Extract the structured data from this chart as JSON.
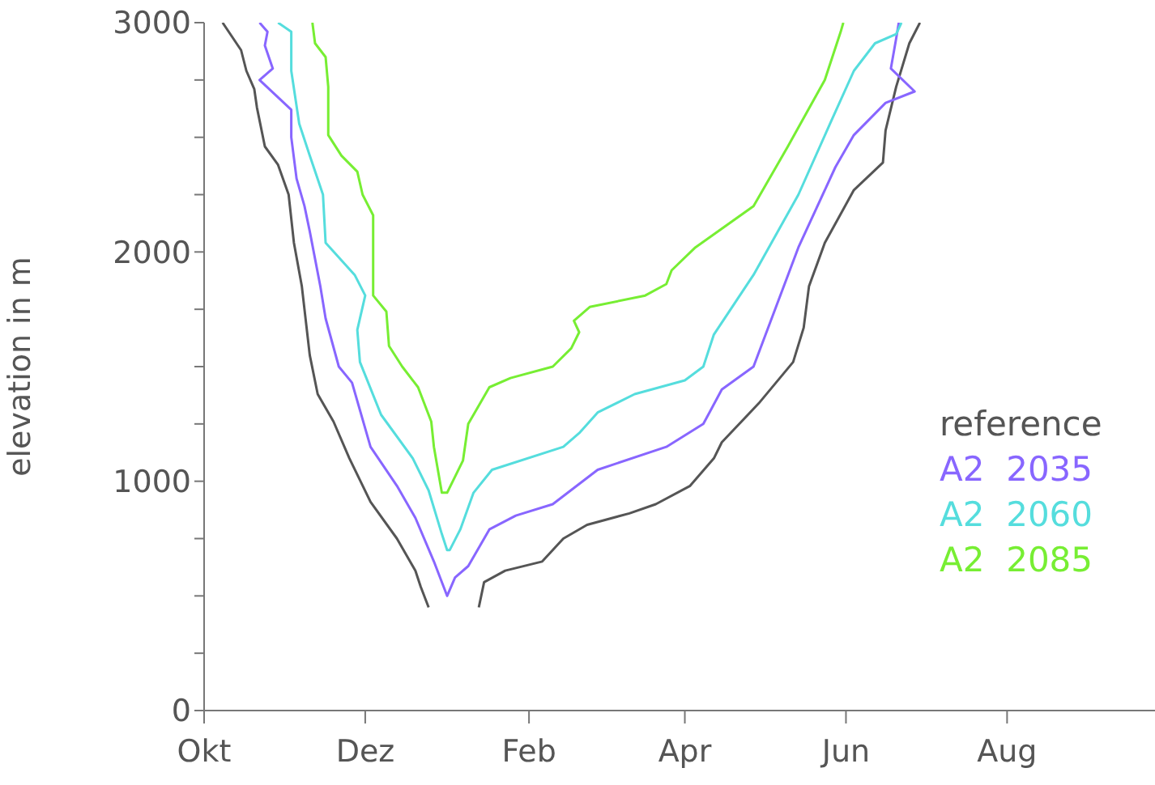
{
  "chart_data": {
    "type": "line",
    "ylabel": "elevation in m",
    "xlim": [
      "2000-10-01",
      "2001-09-26"
    ],
    "ylim": [
      0,
      3000
    ],
    "xticks": [
      {
        "value": "2000-10-01",
        "label": "Okt"
      },
      {
        "value": "2000-12-01",
        "label": "Dez"
      },
      {
        "value": "2001-02-01",
        "label": "Feb"
      },
      {
        "value": "2001-04-01",
        "label": "Apr"
      },
      {
        "value": "2001-06-01",
        "label": "Jun"
      },
      {
        "value": "2001-08-01",
        "label": "Aug"
      }
    ],
    "yticks": [
      0,
      {
        "value": 250,
        "label": null
      },
      {
        "value": 500,
        "label": null
      },
      {
        "value": 750,
        "label": null
      },
      1000,
      {
        "value": 1250,
        "label": null
      },
      {
        "value": 1500,
        "label": null
      },
      {
        "value": 1750,
        "label": null
      },
      2000,
      {
        "value": 2250,
        "label": null
      },
      {
        "value": 2500,
        "label": null
      },
      {
        "value": 2750,
        "label": null
      },
      3000
    ],
    "legend": "right",
    "marker": "none",
    "line_style": "solid",
    "series": [
      {
        "name": "reference",
        "color": "#555555",
        "x": [
          "2000-10-08",
          "2000-10-15",
          "2000-10-17",
          "2000-10-20",
          "2000-10-21",
          "2000-10-24",
          "2000-10-29",
          "2000-11-02",
          "2000-11-04",
          "2000-11-07",
          "2000-11-10",
          "2000-11-13",
          "2000-11-19",
          "2000-11-25",
          "2000-12-03",
          "2000-12-13",
          "2000-12-20",
          "2000-12-22",
          "2000-12-25",
          "2001-01-04",
          "2001-01-13",
          "2001-01-15",
          "2001-01-23",
          "2001-02-06",
          "2001-02-14",
          "2001-02-23",
          "2001-03-11",
          "2001-03-21",
          "2001-04-03",
          "2001-04-12",
          "2001-04-15",
          "2001-04-29",
          "2001-05-12",
          "2001-05-16",
          "2001-05-18",
          "2001-05-24",
          "2001-06-04",
          "2001-06-15",
          "2001-06-16",
          "2001-06-20",
          "2001-06-25",
          "2001-06-29"
        ],
        "values": [
          3000,
          2880,
          2790,
          2710,
          2630,
          2460,
          2380,
          2250,
          2040,
          1850,
          1550,
          1380,
          1260,
          1100,
          910,
          750,
          610,
          540,
          450,
          null,
          450,
          560,
          610,
          650,
          750,
          810,
          860,
          900,
          980,
          1100,
          1170,
          1340,
          1520,
          1670,
          1850,
          2040,
          2270,
          2390,
          2530,
          2720,
          2910,
          3000
        ]
      },
      {
        "name": "A2  2035",
        "color": "#8866ff",
        "x": [
          "2000-10-22",
          "2000-10-25",
          "2000-10-24",
          "2000-10-27",
          "2000-10-22",
          "2000-11-03",
          "2000-11-03",
          "2000-11-05",
          "2000-11-08",
          "2000-11-10",
          "2000-11-14",
          "2000-11-16",
          "2000-11-21",
          "2000-11-26",
          "2000-12-03",
          "2000-12-13",
          "2000-12-20",
          "2000-12-27",
          "2001-01-01",
          "2001-01-04",
          "2001-01-09",
          "2001-01-17",
          "2001-01-27",
          "2001-02-10",
          "2001-02-27",
          "2001-03-25",
          "2001-04-08",
          "2001-04-15",
          "2001-04-27",
          "2001-05-14",
          "2001-05-28",
          "2001-06-04",
          "2001-06-16",
          "2001-06-27",
          "2001-06-18",
          "2001-06-20",
          "2001-06-21"
        ],
        "values": [
          3000,
          2960,
          2900,
          2800,
          2750,
          2620,
          2500,
          2320,
          2200,
          2090,
          1850,
          1710,
          1500,
          1430,
          1150,
          980,
          840,
          650,
          500,
          580,
          630,
          790,
          850,
          900,
          1050,
          1150,
          1250,
          1400,
          1500,
          2020,
          2370,
          2510,
          2650,
          2700,
          2800,
          2930,
          3000
        ]
      },
      {
        "name": "A2  2060",
        "color": "#55dddd",
        "x": [
          "2000-10-29",
          "2000-11-03",
          "2000-11-03",
          "2000-11-06",
          "2000-11-10",
          "2000-11-15",
          "2000-11-16",
          "2000-11-27",
          "2000-12-01",
          "2000-11-28",
          "2000-11-29",
          "2000-12-07",
          "2000-12-19",
          "2000-12-25",
          "2000-12-30",
          "2001-01-01",
          "2001-01-02",
          "2001-01-06",
          "2001-01-11",
          "2001-01-18",
          "2001-02-14",
          "2001-02-20",
          "2001-02-27",
          "2001-03-13",
          "2001-04-01",
          "2001-04-08",
          "2001-04-12",
          "2001-04-27",
          "2001-05-14",
          "2001-05-26",
          "2001-06-04",
          "2001-06-12",
          "2001-06-20",
          "2001-06-22"
        ],
        "values": [
          3000,
          2960,
          2790,
          2560,
          2420,
          2250,
          2040,
          1900,
          1810,
          1660,
          1520,
          1290,
          1100,
          960,
          770,
          700,
          700,
          790,
          950,
          1050,
          1150,
          1210,
          1300,
          1380,
          1440,
          1500,
          1640,
          1900,
          2250,
          2560,
          2790,
          2910,
          2950,
          3000
        ]
      },
      {
        "name": "A2  2085",
        "color": "#77ee33",
        "x": [
          "2000-11-11",
          "2000-11-12",
          "2000-11-16",
          "2000-11-17",
          "2000-11-17",
          "2000-11-22",
          "2000-11-28",
          "2000-11-30",
          "2000-12-04",
          "2000-12-04",
          "2000-12-09",
          "2000-12-10",
          "2000-12-15",
          "2000-12-21",
          "2000-12-26",
          "2000-12-27",
          "2000-12-30",
          "2001-01-01",
          "2001-01-07",
          "2001-01-09",
          "2001-01-17",
          "2001-01-25",
          "2001-02-10",
          "2001-02-17",
          "2001-02-20",
          "2001-02-18",
          "2001-02-24",
          "2001-03-17",
          "2001-03-25",
          "2001-03-27",
          "2001-04-05",
          "2001-04-27",
          "2001-05-10",
          "2001-05-24",
          "2001-05-30",
          "2001-05-31"
        ],
        "values": [
          3000,
          2910,
          2850,
          2720,
          2510,
          2420,
          2350,
          2250,
          2160,
          1810,
          1740,
          1590,
          1500,
          1410,
          1260,
          1150,
          950,
          950,
          1090,
          1250,
          1410,
          1450,
          1500,
          1580,
          1650,
          1700,
          1760,
          1810,
          1860,
          1920,
          2020,
          2200,
          2460,
          2750,
          2960,
          3000
        ]
      }
    ]
  }
}
